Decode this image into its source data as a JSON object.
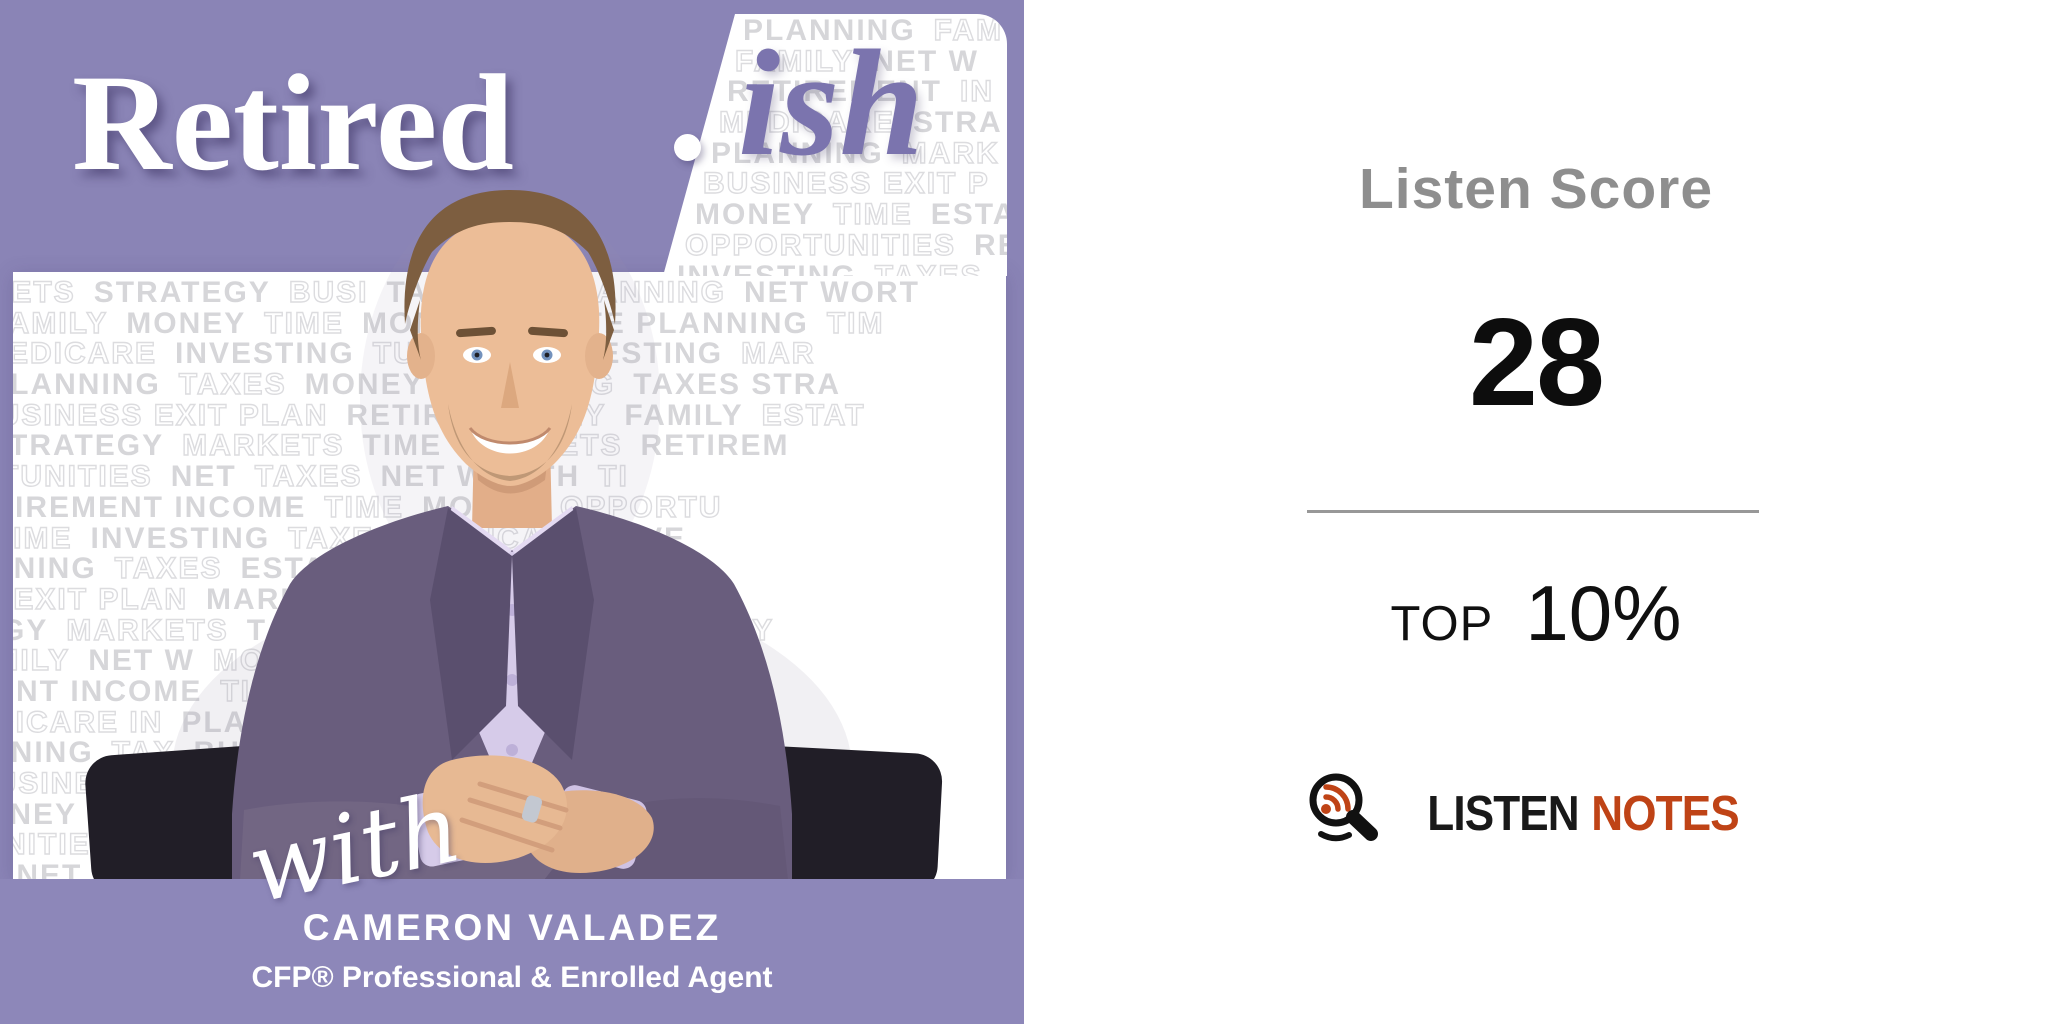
{
  "cover": {
    "title_main": "Retired",
    "title_separator": "·",
    "title_suffix": "ish",
    "with_label": "with",
    "host_name": "CAMERON VALADEZ",
    "host_credentials": "CFP® Professional & Enrolled Agent",
    "colors": {
      "background_purple": "#8a84b6",
      "suffix_purple": "#7b74ae",
      "panel_white": "#ffffff",
      "pattern_gray": "#d6d6d9"
    },
    "pattern_top": [
      {
        "pad": 88,
        "segs": "s:PLANNING|o:FAM"
      },
      {
        "pad": 80,
        "segs": "o:FAMILY|s:NET W"
      },
      {
        "pad": 72,
        "segs": "s:RETIREMENT|o:IN"
      },
      {
        "pad": 64,
        "segs": "o:MEDICARE|s:STRA"
      },
      {
        "pad": 56,
        "segs": "s:PLANNING|o:MARK"
      },
      {
        "pad": 48,
        "segs": "o:BUSINESS EXIT P"
      },
      {
        "pad": 40,
        "segs": "s:MONEY|o:TIME|s:ESTA"
      },
      {
        "pad": 30,
        "segs": "o:OPPORTUNITIES|s:RE"
      },
      {
        "pad": 22,
        "segs": "s:INVESTING|o:TAXES"
      }
    ],
    "pattern_main": [
      {
        "pad": -45,
        "segs": "o:RKETS|s:STRATEGY|o:BUSI|s:TAXES|o:IT PLANNING|s:NET WORT"
      },
      {
        "pad": -20,
        "segs": "o:FAMILY|s:MONEY|o:TIME|s:MONEY|s:ESTATE PLANNING|o:TIM"
      },
      {
        "pad": -28,
        "segs": "o:MEDICARE|s:INVESTING|o:TUNITIES|s:INVESTING|o:MAR"
      },
      {
        "pad": -95,
        "segs": "s:ATE PLANNING|o:TAXES|s:MONEY|o:PLANNING|s:TAXES STRA"
      },
      {
        "pad": -35,
        "segs": "o:BUSINESS EXIT PLAN|s:RETIRE|o:MONEY|s:FAMILY|o:ESTAT"
      },
      {
        "pad": -22,
        "segs": "s:STRATEGY|o:MARKETS|s:TIME|o:MARKETS|s:RETIREM"
      },
      {
        "pad": -80,
        "segs": "o:PORTUNITIES|s:NET|o:TAXES|s:NET WORTH|o:TI"
      },
      {
        "pad": -60,
        "segs": "s:RETIREMENT INCOME|o:TIME|s:MONEY|o:OPPORTU"
      },
      {
        "pad": -70,
        "segs": "o:EY TIME|s:INVESTING|o:TAXES|o:MEDICARE|s:INVE"
      },
      {
        "pad": -85,
        "segs": "s:PLANNING|o:TAXES|s:ESTATE|s:TE PLANNING|o:TA"
      },
      {
        "pad": -50,
        "segs": "o:SS EXIT PLAN|s:MARKETS|o:NESS EXIT PLA"
      },
      {
        "pad": -30,
        "segs": "s:EGY|o:MARKETS|s:TAXES|o:STRATEGY|s:EGY|o:FAMILY"
      },
      {
        "pad": -58,
        "segs": "o:FAMILY|s:NET W|o:MONEY|o:RTUNITIES|s:NET"
      },
      {
        "pad": -42,
        "segs": "s:MENT INCOME|o:TIME|s:MARKETS|s:RETIREMENT"
      },
      {
        "pad": -66,
        "segs": "o:MEDICARE IN|s:PLANNING|o:TAXES|s:MEDICARE|o:IN"
      },
      {
        "pad": -88,
        "segs": "s:PLANNING|o:TAX|s:BUSINESS|s:ATE PLANNIN|o:G"
      },
      {
        "pad": -38,
        "segs": "o:BUSINESS EX|s:MONEY|o:MARKETS|o:ESS EXIT P"
      },
      {
        "pad": -52,
        "segs": "s:MONEY|o:MARKE|s:INVESTING|s:STRATEGY|o:TAX"
      },
      {
        "pad": -98,
        "segs": "o:ORTUNITIES IN|s:TIME|o:TAXES|s:INVESTING|o:TIME"
      },
      {
        "pad": -25,
        "segs": "s:E NET WORTH|o:TAXES|s:EMENT INCOME|o:TIME"
      }
    ]
  },
  "score_card": {
    "heading": "Listen Score",
    "score": "28",
    "rank_label": "TOP",
    "rank_value": "10%",
    "brand_word_dark": "LISTEN",
    "brand_word_accent": "NOTES",
    "colors": {
      "heading_gray": "#8e8e8e",
      "score_black": "#0d0d0d",
      "brand_accent": "#bf4316"
    }
  }
}
